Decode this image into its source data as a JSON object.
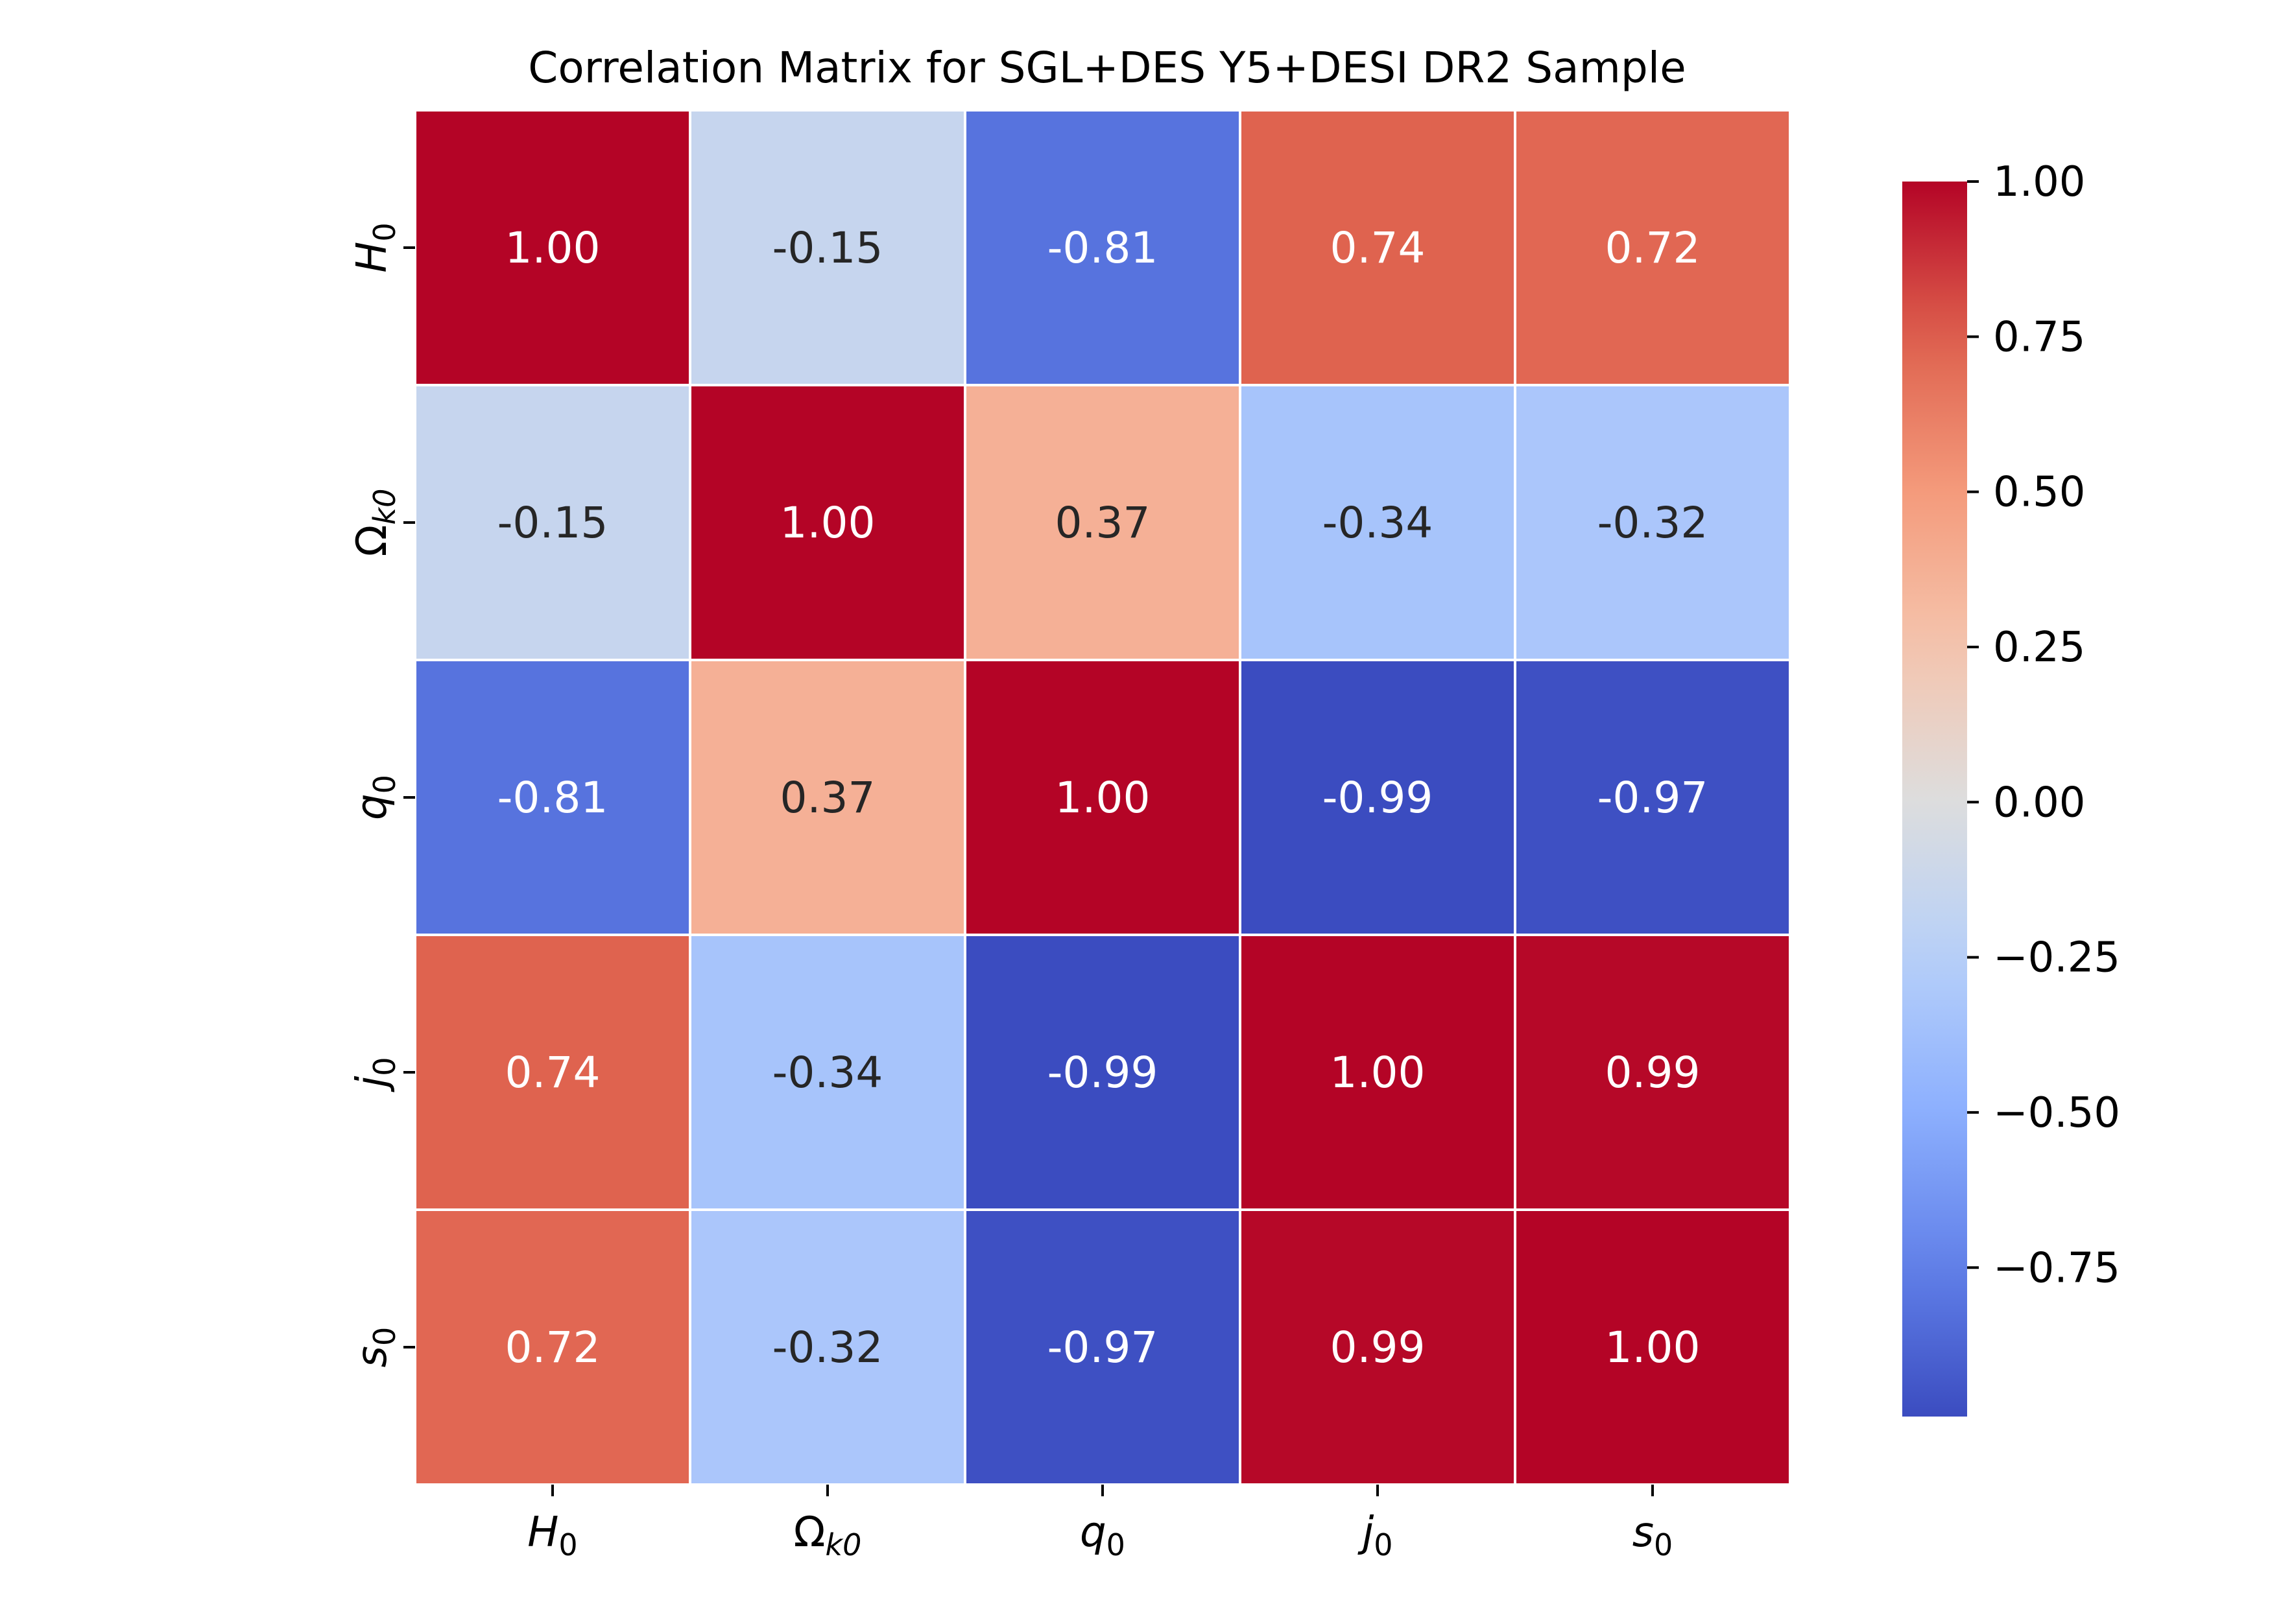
{
  "chart_data": {
    "type": "heatmap",
    "title": "Correlation Matrix for SGL+DES Y5+DESI DR2 Sample",
    "x_labels": [
      {
        "base": "H",
        "sub": "0",
        "base_italic": true,
        "sub_italic": false
      },
      {
        "base": "Ω",
        "sub": "k0",
        "base_italic": false,
        "sub_italic": true
      },
      {
        "base": "q",
        "sub": "0",
        "base_italic": true,
        "sub_italic": false
      },
      {
        "base": "j",
        "sub": "0",
        "base_italic": true,
        "sub_italic": false
      },
      {
        "base": "s",
        "sub": "0",
        "base_italic": true,
        "sub_italic": false
      }
    ],
    "y_labels": [
      {
        "base": "H",
        "sub": "0",
        "base_italic": true,
        "sub_italic": false
      },
      {
        "base": "Ω",
        "sub": "k0",
        "base_italic": false,
        "sub_italic": true
      },
      {
        "base": "q",
        "sub": "0",
        "base_italic": true,
        "sub_italic": false
      },
      {
        "base": "j",
        "sub": "0",
        "base_italic": true,
        "sub_italic": false
      },
      {
        "base": "s",
        "sub": "0",
        "base_italic": true,
        "sub_italic": false
      }
    ],
    "values": [
      [
        1.0,
        -0.15,
        -0.81,
        0.74,
        0.72
      ],
      [
        -0.15,
        1.0,
        0.37,
        -0.34,
        -0.32
      ],
      [
        -0.81,
        0.37,
        1.0,
        -0.99,
        -0.97
      ],
      [
        0.74,
        -0.34,
        -0.99,
        1.0,
        0.99
      ],
      [
        0.72,
        -0.32,
        -0.97,
        0.99,
        1.0
      ]
    ],
    "cell_text": [
      [
        "1.00",
        "-0.15",
        "-0.81",
        "0.74",
        "0.72"
      ],
      [
        "-0.15",
        "1.00",
        "0.37",
        "-0.34",
        "-0.32"
      ],
      [
        "-0.81",
        "0.37",
        "1.00",
        "-0.99",
        "-0.97"
      ],
      [
        "0.74",
        "-0.34",
        "-0.99",
        "1.00",
        "0.99"
      ],
      [
        "0.72",
        "-0.32",
        "-0.97",
        "0.99",
        "1.00"
      ]
    ],
    "colormap": "coolwarm",
    "color_range": [
      -0.99,
      1.0
    ],
    "colorbar": {
      "ticks": [
        1.0,
        0.75,
        0.5,
        0.25,
        0.0,
        -0.25,
        -0.5,
        -0.75
      ],
      "tick_labels": [
        "1.00",
        "0.75",
        "0.50",
        "0.25",
        "0.00",
        "−0.25",
        "−0.50",
        "−0.75"
      ]
    },
    "colors": {
      "cell_border": "#ffffff",
      "light_text": "#ffffff",
      "dark_text": "#262626",
      "axis": "#000000"
    }
  }
}
